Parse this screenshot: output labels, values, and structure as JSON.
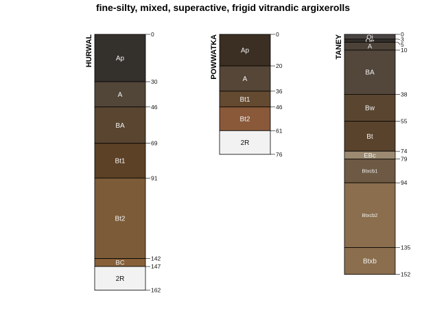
{
  "title": "fine-silty, mixed, superactive, frigid vitrandic argixerolls",
  "chart_data": {
    "type": "soil-profile",
    "unit": "cm",
    "profiles": [
      {
        "name": "HURWAL",
        "horizons": [
          {
            "name": "Ap",
            "top": 0,
            "bottom": 30,
            "color": "#34302c"
          },
          {
            "name": "A",
            "top": 30,
            "bottom": 46,
            "color": "#524638"
          },
          {
            "name": "BA",
            "top": 46,
            "bottom": 69,
            "color": "#594530"
          },
          {
            "name": "Bt1",
            "top": 69,
            "bottom": 91,
            "color": "#5c4126"
          },
          {
            "name": "Bt2",
            "top": 91,
            "bottom": 142,
            "color": "#7c5c38"
          },
          {
            "name": "BC",
            "top": 142,
            "bottom": 147,
            "color": "#876039"
          },
          {
            "name": "2R",
            "top": 147,
            "bottom": 162,
            "color": "#f2f2f2"
          }
        ],
        "depth_labels": [
          "0",
          "30",
          "46",
          "69",
          "91",
          "142",
          "147",
          "162"
        ]
      },
      {
        "name": "POWWATKA",
        "horizons": [
          {
            "name": "Ap",
            "top": 0,
            "bottom": 20,
            "color": "#3b2e22"
          },
          {
            "name": "A",
            "top": 20,
            "bottom": 36,
            "color": "#554638"
          },
          {
            "name": "Bt1",
            "top": 36,
            "bottom": 46,
            "color": "#644a30"
          },
          {
            "name": "Bt2",
            "top": 46,
            "bottom": 61,
            "color": "#89593a"
          },
          {
            "name": "2R",
            "top": 61,
            "bottom": 76,
            "color": "#f2f2f2"
          }
        ],
        "depth_labels": [
          "0",
          "20",
          "36",
          "46",
          "61",
          "76"
        ]
      },
      {
        "name": "TANEY",
        "horizons": [
          {
            "name": "Oi",
            "top": 0,
            "bottom": 3,
            "color": "#4a4542"
          },
          {
            "name": "Oe",
            "top": 3,
            "bottom": 5,
            "color": "#332e2a"
          },
          {
            "name": "A",
            "top": 5,
            "bottom": 10,
            "color": "#4c4238"
          },
          {
            "name": "BA",
            "top": 10,
            "bottom": 38,
            "color": "#53473c"
          },
          {
            "name": "Bw",
            "top": 38,
            "bottom": 55,
            "color": "#5a4630"
          },
          {
            "name": "Bt",
            "top": 55,
            "bottom": 74,
            "color": "#5a432c"
          },
          {
            "name": "EBc",
            "top": 74,
            "bottom": 79,
            "color": "#9c8b72"
          },
          {
            "name": "Btxcb1",
            "top": 79,
            "bottom": 94,
            "color": "#6e5a44"
          },
          {
            "name": "Btxcb2",
            "top": 94,
            "bottom": 135,
            "color": "#8a6e4d"
          },
          {
            "name": "Btxb",
            "top": 135,
            "bottom": 152,
            "color": "#8a6e4d"
          }
        ],
        "depth_labels": [
          "0",
          "3",
          "5",
          "10",
          "38",
          "55",
          "74",
          "79",
          "94",
          "135",
          "152"
        ]
      }
    ]
  }
}
